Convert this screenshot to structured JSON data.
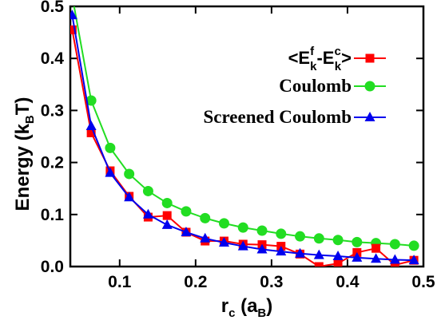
{
  "chart_data": {
    "type": "line",
    "xlabel": {
      "base": "r",
      "base_sub": "c",
      "unit_open": " (a",
      "unit_sub": "B",
      "unit_close": ")"
    },
    "ylabel": {
      "base": "Energy (k",
      "base_sub": "B",
      "close": "T)"
    },
    "xlim": [
      0.035,
      0.5
    ],
    "ylim": [
      0,
      0.5
    ],
    "xticks": [
      0.1,
      0.2,
      0.3,
      0.4,
      0.5
    ],
    "xtick_labels": [
      "0.1",
      "0.2",
      "0.3",
      "0.4",
      "0.5"
    ],
    "yticks": [
      0.0,
      0.1,
      0.2,
      0.3,
      0.4,
      0.5
    ],
    "ytick_labels": [
      "0.0",
      "0.1",
      "0.2",
      "0.3",
      "0.4",
      "0.5"
    ],
    "grid": false,
    "legend_position": "top-right",
    "series": [
      {
        "key": "diff",
        "legend_parts": {
          "open": "<E",
          "sup1": "f",
          "sub1": "k",
          "dash": "-E",
          "sup2": "c",
          "sub2": "k",
          "close": ">"
        },
        "color": "#ff0000",
        "marker": "square",
        "x": [
          0.0375,
          0.0625,
          0.0875,
          0.1125,
          0.1375,
          0.1625,
          0.1875,
          0.2125,
          0.2375,
          0.2625,
          0.2875,
          0.3125,
          0.3375,
          0.3625,
          0.3875,
          0.4125,
          0.4375,
          0.4625,
          0.4875
        ],
        "y": [
          0.455,
          0.257,
          0.184,
          0.135,
          0.095,
          0.098,
          0.066,
          0.049,
          0.049,
          0.043,
          0.042,
          0.039,
          0.024,
          0.0,
          0.006,
          0.027,
          0.035,
          0.003,
          0.012
        ]
      },
      {
        "key": "coulomb",
        "name": "Coulomb",
        "color": "#22dd22",
        "marker": "circle",
        "x": [
          0.0375,
          0.0625,
          0.0875,
          0.1125,
          0.1375,
          0.1625,
          0.1875,
          0.2125,
          0.2375,
          0.2625,
          0.2875,
          0.3125,
          0.3375,
          0.3625,
          0.3875,
          0.4125,
          0.4375,
          0.4625,
          0.4875
        ],
        "y": [
          0.52,
          0.319,
          0.228,
          0.178,
          0.145,
          0.122,
          0.106,
          0.093,
          0.083,
          0.075,
          0.069,
          0.063,
          0.058,
          0.054,
          0.051,
          0.047,
          0.045,
          0.043,
          0.04
        ]
      },
      {
        "key": "screened",
        "name": "Screened Coulomb",
        "color": "#0000ee",
        "marker": "triangle",
        "x": [
          0.0375,
          0.0625,
          0.0875,
          0.1125,
          0.1375,
          0.1625,
          0.1875,
          0.2125,
          0.2375,
          0.2625,
          0.2875,
          0.3125,
          0.3375,
          0.3625,
          0.3875,
          0.4125,
          0.4375,
          0.4625,
          0.4875
        ],
        "y": [
          0.483,
          0.27,
          0.18,
          0.133,
          0.1,
          0.08,
          0.066,
          0.054,
          0.046,
          0.039,
          0.033,
          0.029,
          0.025,
          0.022,
          0.02,
          0.017,
          0.015,
          0.013,
          0.012
        ]
      }
    ]
  }
}
